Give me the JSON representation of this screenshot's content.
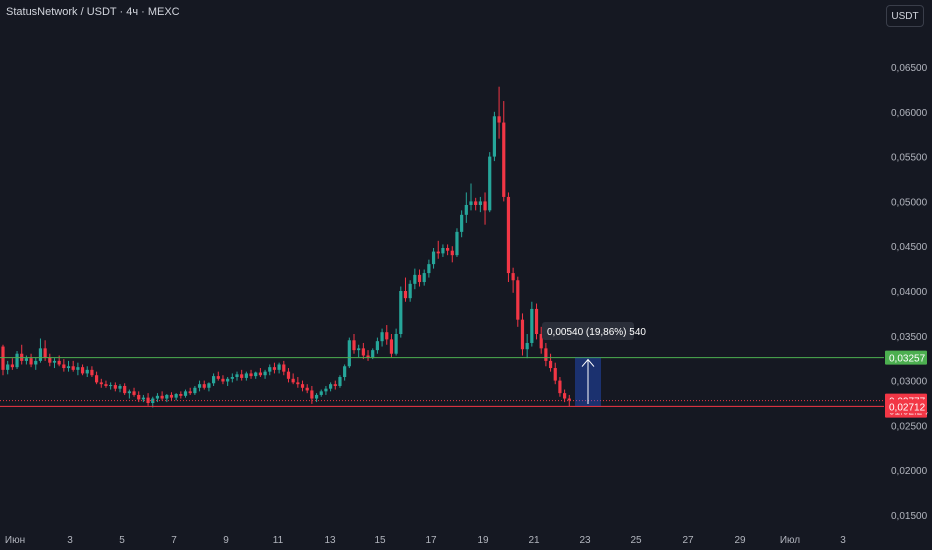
{
  "header": {
    "symbol": "StatusNetwork / USDT · 4ч · MEXC",
    "currency_button": "USDT"
  },
  "colors": {
    "bg": "#151822",
    "up": "#26a69a",
    "down": "#f23645",
    "green_line": "#4caf50",
    "red_line": "#f23645",
    "measure": "#2962ff"
  },
  "chart_data": {
    "type": "candlestick",
    "x_tick_labels": [
      "Июн",
      "3",
      "5",
      "7",
      "9",
      "11",
      "13",
      "15",
      "17",
      "19",
      "21",
      "23",
      "25",
      "27",
      "29",
      "Июл",
      "3"
    ],
    "y_tick_labels": [
      "0,06500",
      "0,06000",
      "0,05500",
      "0,05000",
      "0,04500",
      "0,04000",
      "0,03500",
      "0,03000",
      "0,02500",
      "0,02000",
      "0,01500"
    ],
    "ylim": [
      0.014,
      0.0673
    ],
    "horizontal_lines": [
      {
        "value": 0.03257,
        "label": "0,03257",
        "color": "#4caf50"
      },
      {
        "value": 0.02712,
        "label": "0,02712",
        "color": "#f23645"
      }
    ],
    "last_price": {
      "value": 0.02777,
      "label": "0,02777",
      "countdown": "01:02:24"
    },
    "measure_tooltip": "0,00540 (19,86%) 540",
    "measure": {
      "from": 0.02717,
      "to": 0.03257
    },
    "candles": [
      [
        0.0338,
        0.034,
        0.0306,
        0.0312
      ],
      [
        0.0312,
        0.0322,
        0.0307,
        0.0318
      ],
      [
        0.0318,
        0.0325,
        0.0312,
        0.0315
      ],
      [
        0.0315,
        0.0333,
        0.0313,
        0.033
      ],
      [
        0.033,
        0.034,
        0.0318,
        0.0322
      ],
      [
        0.0322,
        0.0328,
        0.0318,
        0.0325
      ],
      [
        0.0325,
        0.033,
        0.0315,
        0.0318
      ],
      [
        0.0318,
        0.0326,
        0.0312,
        0.0322
      ],
      [
        0.0322,
        0.0347,
        0.032,
        0.0336
      ],
      [
        0.0336,
        0.0345,
        0.0322,
        0.0326
      ],
      [
        0.0326,
        0.033,
        0.0316,
        0.032
      ],
      [
        0.032,
        0.0325,
        0.0314,
        0.0322
      ],
      [
        0.0322,
        0.0328,
        0.0316,
        0.0318
      ],
      [
        0.0318,
        0.0324,
        0.031,
        0.0314
      ],
      [
        0.0314,
        0.0322,
        0.031,
        0.0316
      ],
      [
        0.0316,
        0.0322,
        0.031,
        0.0312
      ],
      [
        0.0312,
        0.032,
        0.0306,
        0.0315
      ],
      [
        0.0315,
        0.0318,
        0.0306,
        0.0308
      ],
      [
        0.0308,
        0.0316,
        0.0304,
        0.0312
      ],
      [
        0.0312,
        0.0316,
        0.0304,
        0.0306
      ],
      [
        0.0306,
        0.031,
        0.0296,
        0.0298
      ],
      [
        0.0298,
        0.0302,
        0.0292,
        0.0296
      ],
      [
        0.0296,
        0.03,
        0.0292,
        0.0294
      ],
      [
        0.0294,
        0.0298,
        0.029,
        0.0295
      ],
      [
        0.0295,
        0.0298,
        0.0288,
        0.0291
      ],
      [
        0.0291,
        0.0296,
        0.0287,
        0.0294
      ],
      [
        0.0294,
        0.0297,
        0.0284,
        0.0286
      ],
      [
        0.0286,
        0.029,
        0.028,
        0.0288
      ],
      [
        0.0288,
        0.0292,
        0.0282,
        0.0284
      ],
      [
        0.0284,
        0.0288,
        0.0276,
        0.0279
      ],
      [
        0.0279,
        0.0284,
        0.0276,
        0.0281
      ],
      [
        0.0281,
        0.0286,
        0.0272,
        0.0275
      ],
      [
        0.0275,
        0.0282,
        0.027,
        0.028
      ],
      [
        0.028,
        0.0286,
        0.0276,
        0.0283
      ],
      [
        0.0283,
        0.0288,
        0.0278,
        0.028
      ],
      [
        0.028,
        0.0285,
        0.0276,
        0.0284
      ],
      [
        0.0284,
        0.0287,
        0.0278,
        0.0281
      ],
      [
        0.0281,
        0.0286,
        0.0278,
        0.0285
      ],
      [
        0.0285,
        0.0288,
        0.028,
        0.0283
      ],
      [
        0.0283,
        0.029,
        0.0281,
        0.0288
      ],
      [
        0.0288,
        0.0292,
        0.0284,
        0.0286
      ],
      [
        0.0286,
        0.0294,
        0.0284,
        0.0292
      ],
      [
        0.0292,
        0.03,
        0.0288,
        0.0296
      ],
      [
        0.0296,
        0.03,
        0.029,
        0.0292
      ],
      [
        0.0292,
        0.0298,
        0.0288,
        0.0297
      ],
      [
        0.0297,
        0.0308,
        0.0294,
        0.0305
      ],
      [
        0.0305,
        0.031,
        0.03,
        0.0302
      ],
      [
        0.0302,
        0.0306,
        0.0296,
        0.0299
      ],
      [
        0.0299,
        0.0304,
        0.0294,
        0.0302
      ],
      [
        0.0302,
        0.0308,
        0.0298,
        0.0304
      ],
      [
        0.0304,
        0.031,
        0.03,
        0.0307
      ],
      [
        0.0307,
        0.0312,
        0.03,
        0.0303
      ],
      [
        0.0303,
        0.031,
        0.03,
        0.0308
      ],
      [
        0.0308,
        0.0312,
        0.0302,
        0.0305
      ],
      [
        0.0305,
        0.031,
        0.0302,
        0.0309
      ],
      [
        0.0309,
        0.0314,
        0.0304,
        0.0306
      ],
      [
        0.0306,
        0.0312,
        0.0302,
        0.031
      ],
      [
        0.031,
        0.0318,
        0.0306,
        0.0315
      ],
      [
        0.0315,
        0.032,
        0.0308,
        0.0312
      ],
      [
        0.0312,
        0.032,
        0.0308,
        0.0318
      ],
      [
        0.0318,
        0.0322,
        0.0306,
        0.031
      ],
      [
        0.031,
        0.0314,
        0.0298,
        0.0302
      ],
      [
        0.0302,
        0.0308,
        0.0296,
        0.0298
      ],
      [
        0.0298,
        0.0304,
        0.0292,
        0.0296
      ],
      [
        0.0296,
        0.03,
        0.0288,
        0.0292
      ],
      [
        0.0292,
        0.0296,
        0.0286,
        0.0289
      ],
      [
        0.0289,
        0.0294,
        0.0274,
        0.028
      ],
      [
        0.028,
        0.0286,
        0.0276,
        0.0284
      ],
      [
        0.0284,
        0.029,
        0.0282,
        0.0288
      ],
      [
        0.0288,
        0.0294,
        0.0284,
        0.0291
      ],
      [
        0.0291,
        0.0298,
        0.0288,
        0.0296
      ],
      [
        0.0296,
        0.03,
        0.029,
        0.0294
      ],
      [
        0.0294,
        0.0306,
        0.0292,
        0.0304
      ],
      [
        0.0304,
        0.0318,
        0.03,
        0.0316
      ],
      [
        0.0316,
        0.0348,
        0.0314,
        0.0345
      ],
      [
        0.0345,
        0.0352,
        0.033,
        0.0334
      ],
      [
        0.0334,
        0.034,
        0.0326,
        0.0336
      ],
      [
        0.0336,
        0.0342,
        0.0324,
        0.0328
      ],
      [
        0.0328,
        0.0334,
        0.0322,
        0.0326
      ],
      [
        0.0326,
        0.0336,
        0.0324,
        0.0334
      ],
      [
        0.0334,
        0.0348,
        0.033,
        0.0344
      ],
      [
        0.0344,
        0.0358,
        0.0338,
        0.0354
      ],
      [
        0.0354,
        0.0362,
        0.034,
        0.0346
      ],
      [
        0.0346,
        0.0352,
        0.0326,
        0.033
      ],
      [
        0.033,
        0.0358,
        0.0328,
        0.0352
      ],
      [
        0.0352,
        0.0405,
        0.0348,
        0.04
      ],
      [
        0.04,
        0.0415,
        0.0388,
        0.0392
      ],
      [
        0.0392,
        0.0412,
        0.0388,
        0.0408
      ],
      [
        0.0408,
        0.0425,
        0.0402,
        0.0418
      ],
      [
        0.0418,
        0.0424,
        0.0405,
        0.041
      ],
      [
        0.041,
        0.0424,
        0.0406,
        0.042
      ],
      [
        0.042,
        0.0435,
        0.0415,
        0.043
      ],
      [
        0.043,
        0.0448,
        0.0425,
        0.0444
      ],
      [
        0.0444,
        0.0456,
        0.0436,
        0.0442
      ],
      [
        0.0442,
        0.0452,
        0.0438,
        0.0448
      ],
      [
        0.0448,
        0.0452,
        0.044,
        0.0445
      ],
      [
        0.0445,
        0.045,
        0.0432,
        0.044
      ],
      [
        0.044,
        0.047,
        0.0438,
        0.0466
      ],
      [
        0.0466,
        0.049,
        0.046,
        0.0485
      ],
      [
        0.0485,
        0.051,
        0.0476,
        0.0496
      ],
      [
        0.0496,
        0.052,
        0.049,
        0.05
      ],
      [
        0.05,
        0.0504,
        0.049,
        0.0496
      ],
      [
        0.0496,
        0.0505,
        0.0488,
        0.05
      ],
      [
        0.05,
        0.051,
        0.0474,
        0.049
      ],
      [
        0.049,
        0.0555,
        0.0488,
        0.055
      ],
      [
        0.055,
        0.06,
        0.0545,
        0.0595
      ],
      [
        0.0595,
        0.0628,
        0.057,
        0.0588
      ],
      [
        0.0588,
        0.0612,
        0.05,
        0.0505
      ],
      [
        0.0505,
        0.051,
        0.041,
        0.042
      ],
      [
        0.042,
        0.0426,
        0.0398,
        0.0412
      ],
      [
        0.0412,
        0.0416,
        0.036,
        0.0368
      ],
      [
        0.0368,
        0.0375,
        0.0328,
        0.0335
      ],
      [
        0.0335,
        0.0352,
        0.0325,
        0.0342
      ],
      [
        0.0342,
        0.0388,
        0.0338,
        0.038
      ],
      [
        0.038,
        0.0386,
        0.0346,
        0.0352
      ],
      [
        0.0352,
        0.036,
        0.033,
        0.0336
      ],
      [
        0.0336,
        0.0342,
        0.0316,
        0.0322
      ],
      [
        0.0322,
        0.033,
        0.031,
        0.0314
      ],
      [
        0.0314,
        0.032,
        0.0296,
        0.03
      ],
      [
        0.03,
        0.0304,
        0.0282,
        0.0286
      ],
      [
        0.0286,
        0.029,
        0.0276,
        0.028
      ],
      [
        0.028,
        0.0284,
        0.0271,
        0.0278
      ]
    ]
  }
}
